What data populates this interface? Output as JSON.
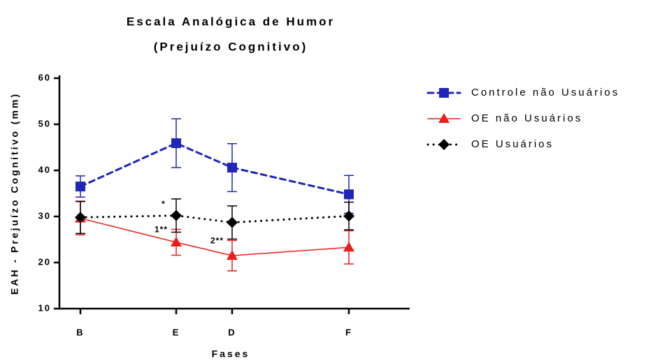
{
  "chart_data": {
    "type": "line",
    "title": [
      "Escala Analógica de Humor",
      "(Prejuízo Cognitivo)"
    ],
    "x_label": "Fases",
    "y_label": "EAH - Prejuízo Cognitivo (mm)",
    "x": [
      6,
      33.4,
      49.4,
      82.8
    ],
    "xlim": [
      0,
      100
    ],
    "xticks": [
      {
        "value": 6,
        "label": "B"
      },
      {
        "value": 33.4,
        "label": "E"
      },
      {
        "value": 49.4,
        "label": "D"
      },
      {
        "value": 82.8,
        "label": "F"
      }
    ],
    "ylim": [
      10,
      60
    ],
    "yticks": [
      10,
      20,
      30,
      40,
      50,
      60
    ],
    "series": [
      {
        "name": "Controle não Usuários",
        "color": "#1f26b8",
        "line_style": "dashed",
        "marker": "square",
        "values": [
          36.5,
          45.9,
          40.6,
          34.8
        ],
        "errors": [
          2.3,
          5.3,
          5.2,
          4.1
        ]
      },
      {
        "name": "OE não Usuários",
        "color": "#ee1c1c",
        "line_style": "solid",
        "marker": "triangle",
        "values": [
          29.6,
          24.4,
          21.5,
          23.3
        ],
        "errors": [
          3.6,
          2.8,
          3.3,
          3.6
        ]
      },
      {
        "name": "OE Usuários",
        "color": "#000000",
        "line_style": "dotted",
        "marker": "diamond",
        "values": [
          29.8,
          30.2,
          28.7,
          30.1
        ],
        "errors": [
          3.5,
          3.6,
          3.6,
          3.0
        ]
      }
    ],
    "annotations": [
      {
        "text": "*",
        "series": 2,
        "index": 1
      },
      {
        "text": "1**",
        "series": 1,
        "index": 1
      },
      {
        "text": "2**",
        "series": 1,
        "index": 2
      }
    ]
  }
}
